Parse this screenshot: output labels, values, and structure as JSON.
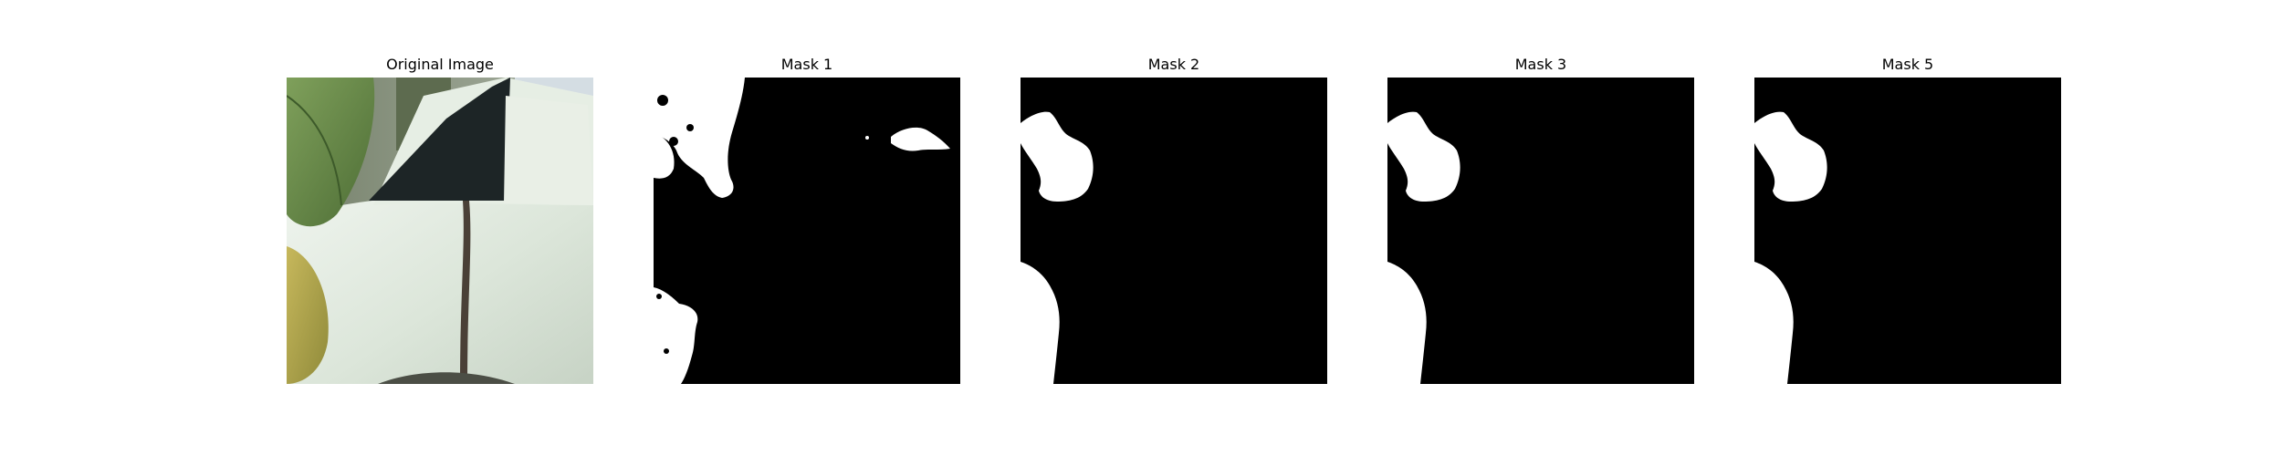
{
  "panels": [
    {
      "title": "Original Image"
    },
    {
      "title": "Mask 1"
    },
    {
      "title": "Mask 2"
    },
    {
      "title": "Mask 3"
    },
    {
      "title": "Mask 5"
    }
  ],
  "colors": {
    "background": "#ffffff",
    "mask_background": "#000000",
    "mask_foreground": "#ffffff",
    "leaf_green": "#6f8f4a",
    "leaf_yellow": "#c2b45a",
    "pot_white": "#dfe9df",
    "dark_band": "#1d2526",
    "stem_brown": "#4a4037"
  }
}
